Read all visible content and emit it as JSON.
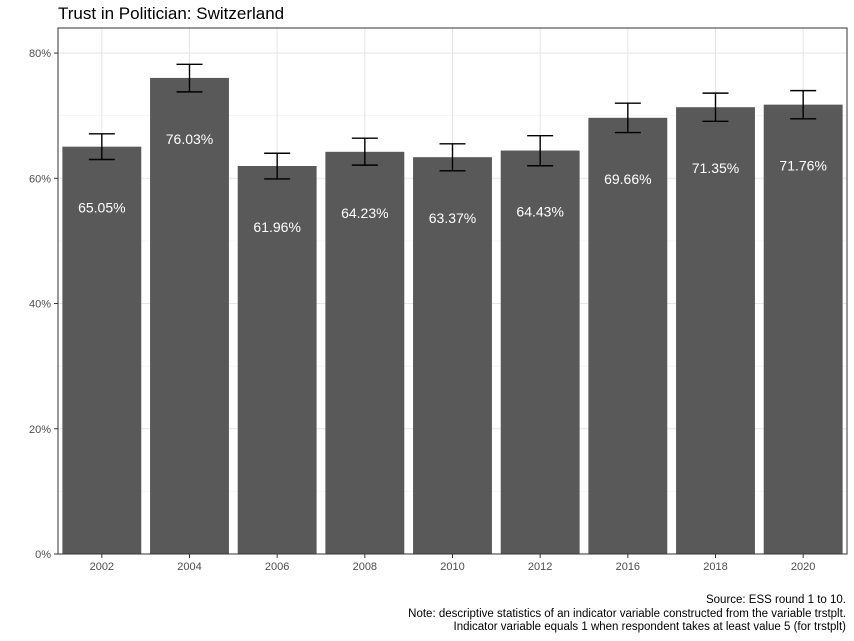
{
  "chart_data": {
    "type": "bar",
    "title": "Trust in Politician: Switzerland",
    "xlabel": "",
    "ylabel": "",
    "categories": [
      "2002",
      "2004",
      "2006",
      "2008",
      "2010",
      "2012",
      "2016",
      "2018",
      "2020"
    ],
    "values": [
      65.05,
      76.03,
      61.96,
      64.23,
      63.37,
      64.43,
      69.66,
      71.35,
      71.76
    ],
    "value_labels": [
      "65.05%",
      "76.03%",
      "61.96%",
      "64.23%",
      "63.37%",
      "64.43%",
      "69.66%",
      "71.35%",
      "71.76%"
    ],
    "error_bars": [
      {
        "low": 63.0,
        "high": 67.1
      },
      {
        "low": 73.8,
        "high": 78.2
      },
      {
        "low": 59.9,
        "high": 64.0
      },
      {
        "low": 62.1,
        "high": 66.4
      },
      {
        "low": 61.2,
        "high": 65.5
      },
      {
        "low": 62.0,
        "high": 66.8
      },
      {
        "low": 67.3,
        "high": 72.0
      },
      {
        "low": 69.1,
        "high": 73.6
      },
      {
        "low": 69.5,
        "high": 74.0
      }
    ],
    "ylim": [
      0,
      84
    ],
    "yticks": [
      0,
      20,
      40,
      60,
      80
    ],
    "ytick_labels": [
      "0%",
      "20%",
      "40%",
      "60%",
      "80%"
    ],
    "grid": true,
    "bar_color": "#595959",
    "label_color": "#ffffff"
  },
  "caption": {
    "line1": "Source: ESS round 1 to 10.",
    "line2": "Note: descriptive statistics of an indicator variable constructed from the variable trstplt.",
    "line3": "Indicator variable equals 1 when respondent takes at least value 5 (for trstplt)"
  }
}
